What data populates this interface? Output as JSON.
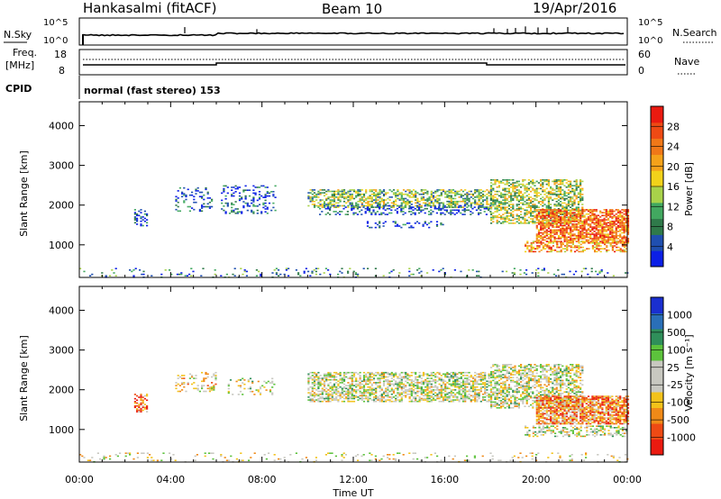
{
  "header": {
    "station": "Hankasalmi (fitACF)",
    "beam": "Beam 10",
    "date": "19/Apr/2016"
  },
  "strips": {
    "nsky_label": "N.Sky",
    "nsky_top": "10^5",
    "nsky_bottom": "10^0",
    "nsearch_label": "N.Search",
    "nsearch_top": "10^5",
    "nsearch_bottom": "10^0",
    "freq_label_1": "Freq.",
    "freq_label_2": "[MHz]",
    "freq_top": "18",
    "freq_bottom": "8",
    "nave_label": "Nave",
    "nave_top": "60",
    "nave_bottom": "0",
    "cpid_label": "CPID",
    "cpid_text": "normal (fast stereo) 153"
  },
  "chart_data": [
    {
      "type": "heatmap",
      "name": "power",
      "ylabel": "Slant Range [km]",
      "xlim": [
        0,
        24
      ],
      "ylim": [
        180,
        4600
      ],
      "yticks": [
        1000,
        2000,
        3000,
        4000
      ],
      "colorbar": {
        "label": "Power [dB]",
        "ticks": [
          "4",
          "8",
          "12",
          "16",
          "20",
          "24",
          "28"
        ],
        "colors": [
          "#0b1fe6",
          "#1f4fb0",
          "#2f7a4a",
          "#42a860",
          "#a8d24a",
          "#f2d21a",
          "#f5a21a",
          "#f07818",
          "#ee4a14",
          "#ea1a10"
        ]
      },
      "regions": [
        {
          "t0": 0.0,
          "t1": 24.0,
          "r0": 180,
          "r1": 420,
          "level": 0.25,
          "density": 0.1
        },
        {
          "t0": 2.4,
          "t1": 3.0,
          "r0": 1500,
          "r1": 1900,
          "level": 0.15,
          "density": 0.4
        },
        {
          "t0": 4.2,
          "t1": 5.8,
          "r0": 1850,
          "r1": 2450,
          "level": 0.15,
          "density": 0.25
        },
        {
          "t0": 6.2,
          "t1": 8.6,
          "r0": 1800,
          "r1": 2500,
          "level": 0.15,
          "density": 0.25
        },
        {
          "t0": 10.0,
          "t1": 18.0,
          "r0": 1950,
          "r1": 2400,
          "level": 0.4,
          "density": 0.55
        },
        {
          "t0": 10.5,
          "t1": 18.0,
          "r0": 1750,
          "r1": 2000,
          "level": 0.15,
          "density": 0.35
        },
        {
          "t0": 12.5,
          "t1": 16.0,
          "r0": 1450,
          "r1": 1600,
          "level": 0.12,
          "density": 0.25
        },
        {
          "t0": 18.0,
          "t1": 22.0,
          "r0": 1550,
          "r1": 2650,
          "level": 0.45,
          "density": 0.55
        },
        {
          "t0": 20.0,
          "t1": 24.0,
          "r0": 1050,
          "r1": 1900,
          "level": 0.78,
          "density": 0.75
        },
        {
          "t0": 19.5,
          "t1": 24.0,
          "r0": 820,
          "r1": 1100,
          "level": 0.7,
          "density": 0.45
        }
      ]
    },
    {
      "type": "heatmap",
      "name": "velocity",
      "ylabel": "Slant Range [km]",
      "xlabel": "Time UT",
      "xlim": [
        0,
        24
      ],
      "ylim": [
        180,
        4600
      ],
      "yticks": [
        1000,
        2000,
        3000,
        4000
      ],
      "xticks": [
        "00:00",
        "04:00",
        "08:00",
        "12:00",
        "16:00",
        "20:00",
        "00:00"
      ],
      "colorbar": {
        "label": "Velocity [m s⁻¹]",
        "ticks": [
          "1000",
          "500",
          "100",
          "25",
          "-25",
          "-100",
          "-500",
          "-1000"
        ],
        "colors": [
          "#1a2fd0",
          "#2a6fb8",
          "#2f8f5a",
          "#5cc23c",
          "#c8c8c0",
          "#c8c8c0",
          "#f2c21a",
          "#f08a18",
          "#ee4a14",
          "#ea1a10"
        ]
      },
      "regions": [
        {
          "t0": 0.0,
          "t1": 24.0,
          "r0": 180,
          "r1": 420,
          "level": 0.55,
          "density": 0.1
        },
        {
          "t0": 2.4,
          "t1": 3.0,
          "r0": 1450,
          "r1": 1900,
          "level": 0.8,
          "density": 0.4
        },
        {
          "t0": 4.2,
          "t1": 6.0,
          "r0": 1950,
          "r1": 2450,
          "level": 0.6,
          "density": 0.25
        },
        {
          "t0": 6.5,
          "t1": 8.5,
          "r0": 1900,
          "r1": 2300,
          "level": 0.5,
          "density": 0.2
        },
        {
          "t0": 10.0,
          "t1": 18.0,
          "r0": 1700,
          "r1": 2450,
          "level": 0.5,
          "density": 0.6
        },
        {
          "t0": 18.0,
          "t1": 22.0,
          "r0": 1550,
          "r1": 2650,
          "level": 0.5,
          "density": 0.55
        },
        {
          "t0": 20.0,
          "t1": 24.0,
          "r0": 1150,
          "r1": 1850,
          "level": 0.75,
          "density": 0.8
        },
        {
          "t0": 19.5,
          "t1": 24.0,
          "r0": 820,
          "r1": 1100,
          "level": 0.5,
          "density": 0.45
        }
      ]
    }
  ]
}
